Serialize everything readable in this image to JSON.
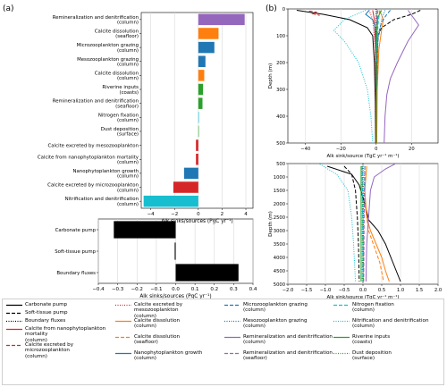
{
  "panel_labels": {
    "a": "(a)",
    "b": "(b)"
  },
  "colors": {
    "purple": "#9467bd",
    "orange": "#ff7f0e",
    "blue": "#1f77b4",
    "green": "#2ca02c",
    "red": "#d62728",
    "cyan": "#17becf",
    "black": "#000000"
  },
  "chart_data": [
    {
      "type": "bar",
      "orientation": "horizontal",
      "panel": "a-top",
      "categories": [
        "Remineralization and denitrification\n(column)",
        "Calcite dissolution\n(seafloor)",
        "Microzooplankton grazing\n(column)",
        "Mesozooplankton grazing\n(column)",
        "Calcite dissolution\n(column)",
        "Riverine inputs\n(coasts)",
        "Remineralization and denitrification\n(seafloor)",
        "Nitrogen fixation\n(column)",
        "Dust deposition\n(surface)",
        "Calcite excreted by mesozooplankton",
        "Calcite from nanophytoplankton mortality\n(column)",
        "Nanophytoplankton growth\n(column)",
        "Calcite excreted by microzooplankton\n(column)",
        "Nitrification and denitrification\n(column)"
      ],
      "values": [
        3.9,
        1.7,
        1.35,
        0.6,
        0.5,
        0.4,
        0.35,
        0.05,
        0.02,
        -0.2,
        -0.2,
        -1.2,
        -2.1,
        -4.6
      ],
      "bar_colors": [
        "#9467bd",
        "#ff7f0e",
        "#1f77b4",
        "#1f77b4",
        "#ff7f0e",
        "#2ca02c",
        "#2ca02c",
        "#17becf",
        "#2ca02c",
        "#d62728",
        "#d62728",
        "#1f77b4",
        "#d62728",
        "#17becf"
      ],
      "xlabel": "Alk sinks/sources (PgC yr⁻¹)",
      "xlim": [
        -4.8,
        4.6
      ],
      "xticks": [
        "−4",
        "−2",
        "0",
        "2",
        "4"
      ],
      "xtick_values": [
        -4,
        -2,
        0,
        2,
        4
      ],
      "grid": true
    },
    {
      "type": "bar",
      "orientation": "horizontal",
      "panel": "a-bottom",
      "categories": [
        "Carbonate pump",
        "Soft-tissue pump",
        "Boundary fluxes"
      ],
      "values": [
        -0.32,
        -0.005,
        0.325
      ],
      "bar_colors": [
        "#000000",
        "#000000",
        "#000000"
      ],
      "xlabel": "Alk sinks/sources (PgC yr⁻¹)",
      "xlim": [
        -0.4,
        0.4
      ],
      "xticks": [
        "−0.4",
        "−0.3",
        "−0.2",
        "−0.1",
        "0.0",
        "0.1",
        "0.2",
        "0.3",
        "0.4"
      ],
      "xtick_values": [
        -0.4,
        -0.3,
        -0.2,
        -0.1,
        0.0,
        0.1,
        0.2,
        0.3,
        0.4
      ],
      "grid": true
    },
    {
      "type": "line",
      "panel": "b-top",
      "ylabel": "Depth (m)",
      "xlabel": "Alk sink/source (TgC yr⁻¹ m⁻¹)",
      "xlim": [
        -50,
        35
      ],
      "ylim": [
        500,
        0
      ],
      "xticks": [
        "−40",
        "−20",
        "0",
        "20"
      ],
      "xtick_values": [
        -40,
        -20,
        0,
        20
      ],
      "yticks": [
        "0",
        "100",
        "200",
        "300",
        "400",
        "500"
      ],
      "ytick_values": [
        0,
        100,
        200,
        300,
        400,
        500
      ],
      "series": [
        {
          "key": "carbonate",
          "color": "#000000",
          "dash": "",
          "x": [
            -45,
            -30,
            -15,
            -5,
            -2,
            -1,
            -0.5,
            -0.3
          ],
          "depth": [
            5,
            20,
            40,
            70,
            100,
            200,
            350,
            500
          ]
        },
        {
          "key": "softtissue",
          "color": "#000000",
          "dash": "4,2",
          "x": [
            25,
            20,
            10,
            3,
            1,
            0.5,
            0.3,
            0.2
          ],
          "depth": [
            5,
            20,
            40,
            70,
            100,
            200,
            350,
            500
          ]
        },
        {
          "key": "boundary",
          "color": "#000000",
          "dash": "1,1.5",
          "x": [
            0,
            0,
            0,
            0
          ],
          "depth": [
            0,
            100,
            300,
            500
          ]
        },
        {
          "key": "mort",
          "color": "#d62728",
          "dash": "",
          "x": [
            -2,
            -1,
            -0.3,
            -0.1
          ],
          "depth": [
            5,
            40,
            150,
            500
          ]
        },
        {
          "key": "micro_exc",
          "color": "#d62728",
          "dash": "4,2",
          "x": [
            -38,
            -34,
            -36,
            -32
          ],
          "depth": [
            8,
            12,
            18,
            24
          ]
        },
        {
          "key": "meso_exc",
          "color": "#d62728",
          "dash": "1,1.5",
          "x": [
            -4,
            -2,
            -0.5,
            -0.2
          ],
          "depth": [
            5,
            40,
            150,
            500
          ]
        },
        {
          "key": "calc_col",
          "color": "#ff7f0e",
          "dash": "",
          "x": [
            2,
            4,
            3,
            1.5,
            0.6,
            0.3
          ],
          "depth": [
            5,
            40,
            80,
            150,
            300,
            500
          ]
        },
        {
          "key": "calc_floor",
          "color": "#ff7f0e",
          "dash": "4,2",
          "x": [
            1,
            0.5,
            0.2,
            0.1
          ],
          "depth": [
            5,
            80,
            200,
            500
          ]
        },
        {
          "key": "nano",
          "color": "#1f77b4",
          "dash": "",
          "x": [
            -4,
            -6,
            -2,
            -0.5,
            -0.1
          ],
          "depth": [
            5,
            20,
            40,
            70,
            150
          ]
        },
        {
          "key": "micro_graz",
          "color": "#1f77b4",
          "dash": "4,2",
          "x": [
            8,
            6,
            3,
            1,
            0.3
          ],
          "depth": [
            5,
            20,
            50,
            100,
            300
          ]
        },
        {
          "key": "meso_graz",
          "color": "#1f77b4",
          "dash": "1,1.5",
          "x": [
            5,
            3,
            1,
            0.3
          ],
          "depth": [
            5,
            40,
            120,
            300
          ]
        },
        {
          "key": "remin_col",
          "color": "#9467bd",
          "dash": "",
          "x": [
            18,
            24,
            18,
            12,
            8,
            6,
            5,
            4.5
          ],
          "depth": [
            5,
            60,
            120,
            200,
            260,
            320,
            400,
            500
          ]
        },
        {
          "key": "remin_floor",
          "color": "#9467bd",
          "dash": "4,2",
          "x": [
            0.5,
            0.2,
            0.1
          ],
          "depth": [
            5,
            150,
            500
          ]
        },
        {
          "key": "riverine",
          "color": "#2ca02c",
          "dash": "",
          "x": [
            3,
            1,
            0.3,
            0.1
          ],
          "depth": [
            5,
            30,
            100,
            500
          ]
        },
        {
          "key": "dust",
          "color": "#2ca02c",
          "dash": "1,1.5",
          "x": [
            1,
            0.2,
            0.05
          ],
          "depth": [
            5,
            30,
            300
          ]
        },
        {
          "key": "nfix",
          "color": "#17becf",
          "dash": "4,2",
          "x": [
            2,
            1,
            0.3
          ],
          "depth": [
            5,
            60,
            200
          ]
        },
        {
          "key": "nitrif",
          "color": "#17becf",
          "dash": "1,1.5",
          "x": [
            -6,
            -18,
            -24,
            -18,
            -10,
            -5,
            -3,
            -2
          ],
          "depth": [
            5,
            40,
            80,
            120,
            200,
            300,
            400,
            500
          ]
        }
      ]
    },
    {
      "type": "line",
      "panel": "b-bottom",
      "ylabel": "Depth (m)",
      "xlabel": "Alk sink/source (TgC yr⁻¹ m⁻¹)",
      "xlim": [
        -2.0,
        2.0
      ],
      "ylim": [
        5000,
        500
      ],
      "xticks": [
        "−2.0",
        "−1.5",
        "−1.0",
        "−0.5",
        "0.0",
        "0.5",
        "1.0",
        "1.5",
        "2.0"
      ],
      "xtick_values": [
        -2.0,
        -1.5,
        -1.0,
        -0.5,
        0.0,
        0.5,
        1.0,
        1.5,
        2.0
      ],
      "yticks": [
        "500",
        "1000",
        "1500",
        "2000",
        "2500",
        "3000",
        "3500",
        "4000",
        "4500",
        "5000"
      ],
      "ytick_values": [
        500,
        1000,
        1500,
        2000,
        2500,
        3000,
        3500,
        4000,
        4500,
        5000
      ],
      "series": [
        {
          "key": "carbonate",
          "color": "#000000",
          "dash": "",
          "x": [
            -0.95,
            -0.3,
            -0.1,
            0.05,
            0.15,
            0.4,
            0.6,
            0.8,
            1.0
          ],
          "depth": [
            600,
            900,
            1300,
            2000,
            2600,
            3000,
            3500,
            4200,
            4900
          ]
        },
        {
          "key": "softtissue",
          "color": "#000000",
          "dash": "4,2",
          "x": [
            -0.5,
            -0.3,
            -0.2,
            -0.15,
            -0.12,
            -0.1
          ],
          "depth": [
            600,
            900,
            1500,
            2500,
            3500,
            4900
          ]
        },
        {
          "key": "boundary",
          "color": "#000000",
          "dash": "1,1.5",
          "x": [
            0,
            0,
            0
          ],
          "depth": [
            500,
            3000,
            5000
          ]
        },
        {
          "key": "calc_col",
          "color": "#ff7f0e",
          "dash": "",
          "x": [
            0.1,
            0.05,
            0.1,
            0.2,
            0.35,
            0.5,
            0.6,
            0.7
          ],
          "depth": [
            600,
            1500,
            2500,
            3000,
            3500,
            4000,
            4500,
            4900
          ]
        },
        {
          "key": "calc_floor",
          "color": "#ff7f0e",
          "dash": "4,2",
          "x": [
            0.05,
            0.05,
            0.15,
            0.3,
            0.45,
            0.55
          ],
          "depth": [
            600,
            2000,
            3000,
            3600,
            4200,
            4900
          ]
        },
        {
          "key": "remin_col",
          "color": "#9467bd",
          "dash": "",
          "x": [
            0.85,
            0.6,
            0.3,
            0.2,
            0.15,
            0.1,
            0.08
          ],
          "depth": [
            520,
            700,
            1000,
            1500,
            2500,
            3500,
            4900
          ]
        },
        {
          "key": "remin_floor",
          "color": "#9467bd",
          "dash": "4,2",
          "x": [
            0.05,
            0.03,
            0.02
          ],
          "depth": [
            600,
            2500,
            4900
          ]
        },
        {
          "key": "meso_graz",
          "color": "#1f77b4",
          "dash": "1,1.5",
          "x": [
            0.05,
            0.02,
            0.01
          ],
          "depth": [
            600,
            2000,
            4900
          ]
        },
        {
          "key": "nitrif",
          "color": "#17becf",
          "dash": "1,1.5",
          "x": [
            -1.15,
            -0.7,
            -0.4,
            -0.3,
            -0.25,
            -0.2
          ],
          "depth": [
            520,
            900,
            1500,
            2500,
            3500,
            4900
          ]
        },
        {
          "key": "nfix",
          "color": "#17becf",
          "dash": "4,2",
          "x": [
            -0.02,
            -0.01,
            0
          ],
          "depth": [
            600,
            2000,
            4900
          ]
        },
        {
          "key": "riverine",
          "color": "#2ca02c",
          "dash": "",
          "x": [
            -0.05,
            -0.05,
            -0.05
          ],
          "depth": [
            600,
            2000,
            4900
          ]
        },
        {
          "key": "dust",
          "color": "#2ca02c",
          "dash": "1,1.5",
          "x": [
            -0.03,
            -0.02,
            -0.02
          ],
          "depth": [
            600,
            2000,
            4900
          ]
        }
      ]
    }
  ],
  "legend": {
    "items": [
      {
        "label": "Carbonate pump",
        "color": "#000000",
        "dash": ""
      },
      {
        "label": "Soft-tissue pump",
        "color": "#000000",
        "dash": "4,2"
      },
      {
        "label": "Boundary fluxes",
        "color": "#000000",
        "dash": "1,1.5"
      },
      {
        "label": "Calcite from nanophytoplankton mortality\n(column)",
        "color": "#d62728",
        "dash": ""
      },
      {
        "label": "Calcite excreted by microzooplankton\n(column)",
        "color": "#d62728",
        "dash": "4,2"
      },
      {
        "label": "Calcite excreted by mesozooplankton\n(column)",
        "color": "#d62728",
        "dash": "1,1.5"
      },
      {
        "label": "Calcite dissolution\n(column)",
        "color": "#ff7f0e",
        "dash": ""
      },
      {
        "label": "Calcite dissolution\n(seafloor)",
        "color": "#ff7f0e",
        "dash": "4,2"
      },
      {
        "label": "Nanophytoplankton growth\n(column)",
        "color": "#1f77b4",
        "dash": ""
      },
      {
        "label": "Microzooplankton grazing\n(column)",
        "color": "#1f77b4",
        "dash": "4,2"
      },
      {
        "label": "Mesozooplankton grazing\n(column)",
        "color": "#1f77b4",
        "dash": "1,1.5"
      },
      {
        "label": "Remineralization and denitrification\n(column)",
        "color": "#9467bd",
        "dash": ""
      },
      {
        "label": "Remineralization and denitrification\n(seafloor)",
        "color": "#9467bd",
        "dash": "4,2"
      },
      {
        "label": "Nitrogen fixation\n(column)",
        "color": "#17becf",
        "dash": "4,2"
      },
      {
        "label": "Nitrification and denitrification\n(column)",
        "color": "#17becf",
        "dash": "1,1.5"
      },
      {
        "label": "Riverine inputs\n(coasts)",
        "color": "#2ca02c",
        "dash": ""
      },
      {
        "label": "Dust deposition\n(surface)",
        "color": "#2ca02c",
        "dash": "1,1.5"
      }
    ]
  }
}
